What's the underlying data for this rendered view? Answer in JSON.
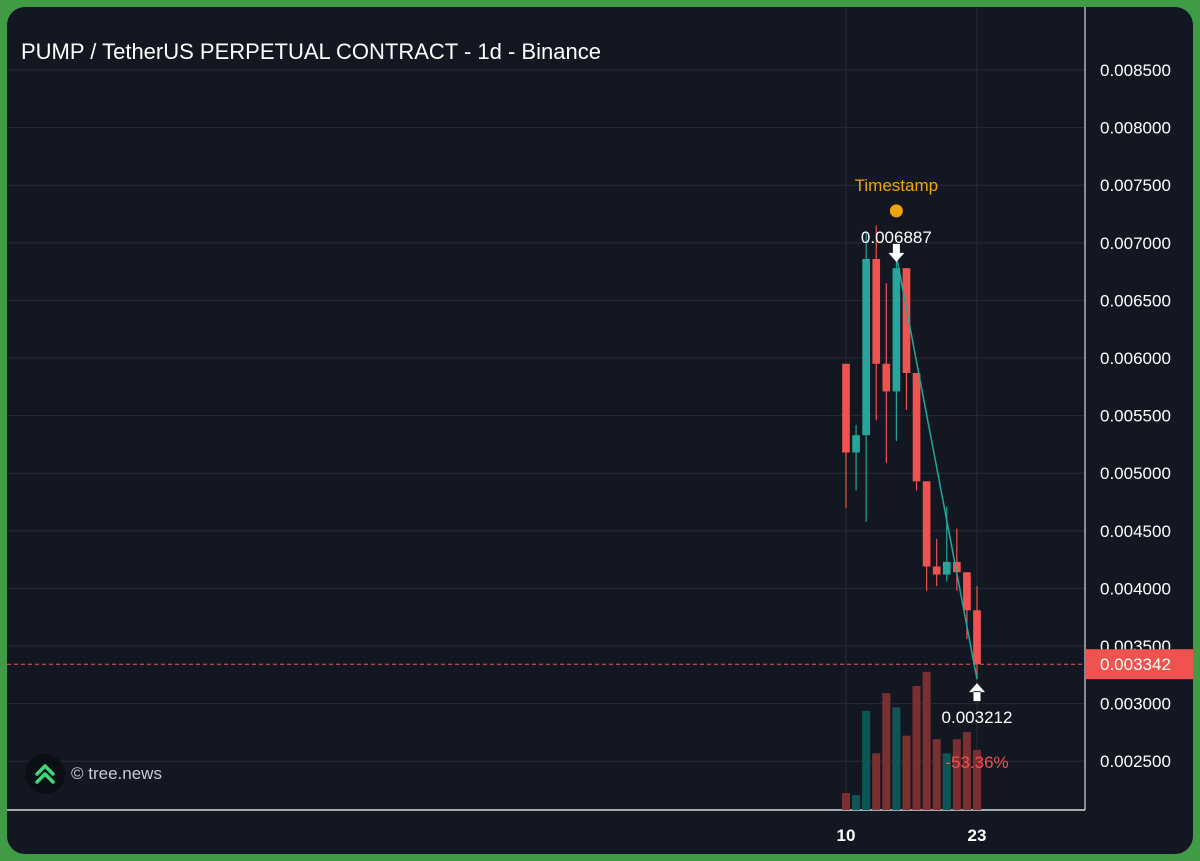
{
  "chart_data": {
    "type": "candlestick",
    "title": "PUMP / TetherUS PERPETUAL CONTRACT - 1d - Binance",
    "ylim": [
      0.00225,
      0.0087
    ],
    "y_ticks": [
      "0.008500",
      "0.008000",
      "0.007500",
      "0.007000",
      "0.006500",
      "0.006000",
      "0.005500",
      "0.005000",
      "0.004500",
      "0.004000",
      "0.003500",
      "0.003000",
      "0.002500"
    ],
    "x_ticks": [
      {
        "label": "10",
        "day": 10
      },
      {
        "label": "23",
        "day": 23
      }
    ],
    "candles": [
      {
        "day": 10,
        "open": 0.00595,
        "high": 0.00595,
        "low": 0.0047,
        "close": 0.00518
      },
      {
        "day": 11,
        "open": 0.00518,
        "high": 0.00542,
        "low": 0.00485,
        "close": 0.00533
      },
      {
        "day": 12,
        "open": 0.00533,
        "high": 0.0071,
        "low": 0.00458,
        "close": 0.00686
      },
      {
        "day": 13,
        "open": 0.00686,
        "high": 0.00715,
        "low": 0.00546,
        "close": 0.00595
      },
      {
        "day": 14,
        "open": 0.00595,
        "high": 0.00665,
        "low": 0.00509,
        "close": 0.00571
      },
      {
        "day": 15,
        "open": 0.00571,
        "high": 0.006887,
        "low": 0.00528,
        "close": 0.00678
      },
      {
        "day": 16,
        "open": 0.00678,
        "high": 0.00678,
        "low": 0.00555,
        "close": 0.00587
      },
      {
        "day": 17,
        "open": 0.00587,
        "high": 0.00587,
        "low": 0.00485,
        "close": 0.00493
      },
      {
        "day": 18,
        "open": 0.00493,
        "high": 0.00493,
        "low": 0.00398,
        "close": 0.00419
      },
      {
        "day": 19,
        "open": 0.00419,
        "high": 0.00443,
        "low": 0.00402,
        "close": 0.00412
      },
      {
        "day": 20,
        "open": 0.00412,
        "high": 0.00471,
        "low": 0.00406,
        "close": 0.00423
      },
      {
        "day": 21,
        "open": 0.00423,
        "high": 0.00452,
        "low": 0.00398,
        "close": 0.00414
      },
      {
        "day": 22,
        "open": 0.00414,
        "high": 0.00414,
        "low": 0.00356,
        "close": 0.00381
      },
      {
        "day": 23,
        "open": 0.00381,
        "high": 0.00402,
        "low": 0.003212,
        "close": 0.003342
      }
    ],
    "volume_ylim": [
      0,
      4.8
    ],
    "volume": [
      0.48,
      0.42,
      2.8,
      1.6,
      3.3,
      2.9,
      2.1,
      3.5,
      3.9,
      2.0,
      1.6,
      2.0,
      2.2,
      1.7
    ],
    "last_price": "0.003342",
    "annotations": {
      "event_label": "Timestamp",
      "high_label": "0.006887",
      "low_label": "0.003212",
      "change_label": "-53.36%",
      "line_from": {
        "day": 15,
        "value": 0.006887
      },
      "line_to": {
        "day": 23,
        "value": 0.003212
      }
    },
    "colors": {
      "up": "#26a69a",
      "down": "#ef5350",
      "up_volume": "#0e5655",
      "down_volume": "#7a2f31",
      "event": "#f0a30a",
      "grid": "#262b38",
      "text": "#ffffff",
      "background": "#131722"
    }
  },
  "watermark": {
    "text": "© tree.news",
    "logo_icon": "tree-news-chevrons-icon"
  }
}
